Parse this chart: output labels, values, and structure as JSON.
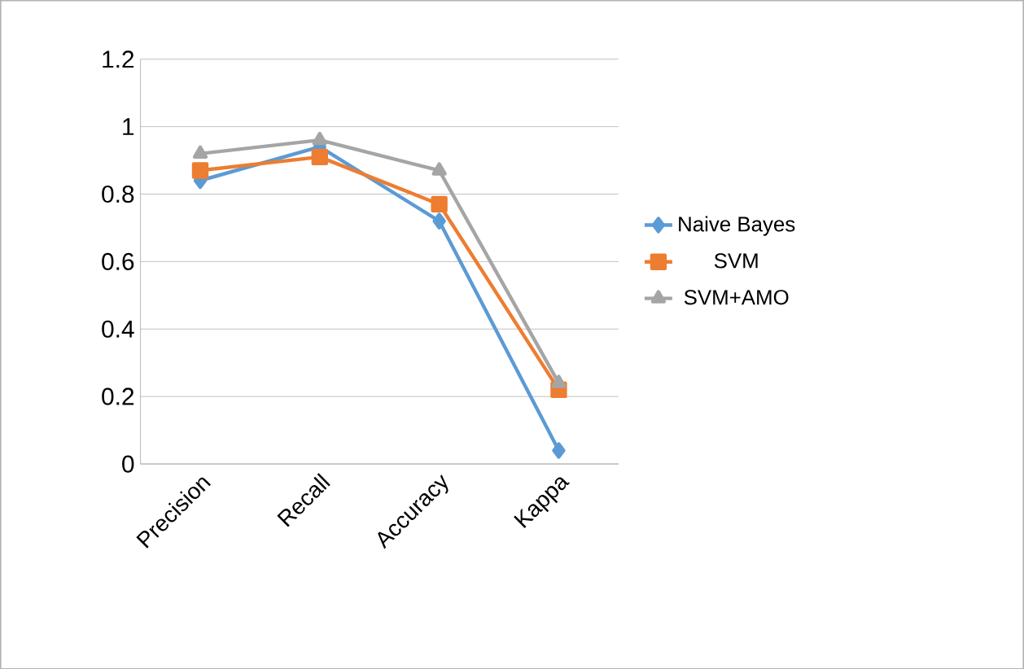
{
  "chart_data": {
    "type": "line",
    "categories": [
      "Precision",
      "Recall",
      "Accuracy",
      "Kappa"
    ],
    "series": [
      {
        "name": "Naive Bayes",
        "color": "#5b9bd5",
        "marker": "diamond",
        "values": [
          0.84,
          0.94,
          0.72,
          0.04
        ]
      },
      {
        "name": "SVM",
        "color": "#ed7d31",
        "marker": "square",
        "values": [
          0.87,
          0.91,
          0.77,
          0.22
        ]
      },
      {
        "name": "SVM+AMO",
        "color": "#a5a5a5",
        "marker": "triangle",
        "values": [
          0.92,
          0.96,
          0.87,
          0.24
        ]
      }
    ],
    "ylim": [
      0,
      1.2
    ],
    "yticks": [
      0,
      0.2,
      0.4,
      0.6,
      0.8,
      1,
      1.2
    ],
    "grid": "y",
    "legend": "right",
    "line_style": "solid"
  }
}
